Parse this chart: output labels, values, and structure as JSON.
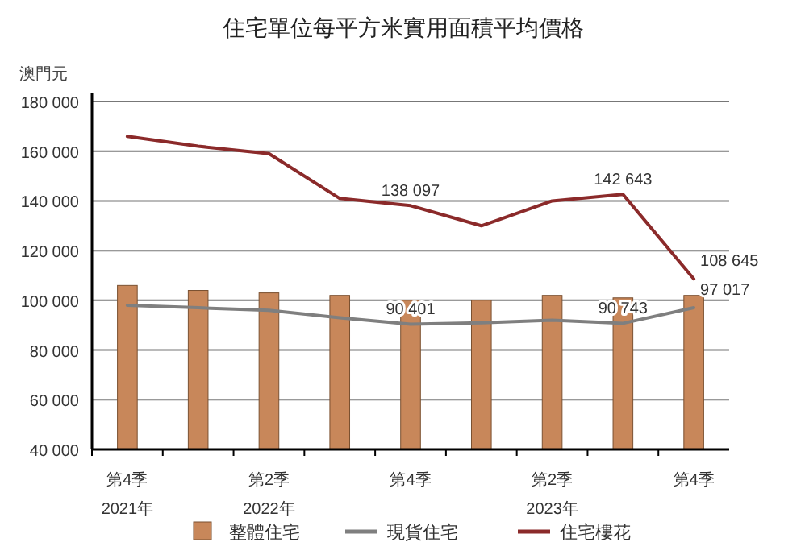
{
  "chart_data": {
    "type": "bar",
    "title": "住宅單位每平方米實用面積平均價格",
    "ylabel": "澳門元",
    "categories": [
      "第4季\n2021年",
      null,
      "第2季\n2022年",
      null,
      "第4季",
      null,
      "第2季\n2023年",
      null,
      "第4季"
    ],
    "ylim": [
      40000,
      180000
    ],
    "yticks": [
      {
        "value": 40000,
        "label": "40 000"
      },
      {
        "value": 60000,
        "label": "60 000"
      },
      {
        "value": 80000,
        "label": "80 000"
      },
      {
        "value": 100000,
        "label": "100 000"
      },
      {
        "value": 120000,
        "label": "120 000"
      },
      {
        "value": 140000,
        "label": "140 000"
      },
      {
        "value": 160000,
        "label": "160 000"
      },
      {
        "value": 180000,
        "label": "180 000"
      }
    ],
    "grid": "y",
    "legend": "bottom",
    "series": [
      {
        "name": "整體住宅",
        "color": "#c8875a",
        "values": [
          106000,
          104000,
          103000,
          102000,
          100000,
          100000,
          102000,
          101000,
          102000
        ]
      },
      {
        "name": "現貨住宅",
        "type": "line",
        "color": "#7f7f7f",
        "values": [
          98000,
          97000,
          96000,
          93000,
          90401,
          91000,
          92000,
          90743,
          97017
        ],
        "value_labels": [
          null,
          null,
          null,
          null,
          "90 401",
          null,
          null,
          "90 743",
          "97 017"
        ]
      },
      {
        "name": "住宅樓花",
        "type": "line",
        "color": "#8b2a2a",
        "values": [
          166000,
          162000,
          159000,
          141000,
          138097,
          130000,
          140000,
          142643,
          108645
        ],
        "value_labels": [
          null,
          null,
          null,
          null,
          "138 097",
          null,
          null,
          "142 643",
          "108 645"
        ]
      }
    ]
  }
}
